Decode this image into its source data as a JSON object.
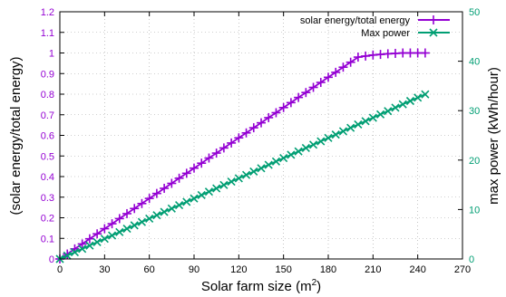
{
  "chart_data": {
    "type": "line",
    "xlabel": "Solar farm size (m",
    "xlabel_sup": "2",
    "xlabel_end": ")",
    "ylabel_left": "(solar energy/total energy)",
    "ylabel_right": "max power (kWh/hour)",
    "xlim": [
      0,
      270
    ],
    "ylim_left": [
      0,
      1.2
    ],
    "ylim_right": [
      0,
      50
    ],
    "x_ticks": [
      "0",
      "30",
      "60",
      "90",
      "120",
      "150",
      "180",
      "210",
      "240",
      "270"
    ],
    "y_left_ticks": [
      "0",
      "0.1",
      "0.2",
      "0.3",
      "0.4",
      "0.5",
      "0.6",
      "0.7",
      "0.8",
      "0.9",
      "1",
      "1.1",
      "1.2"
    ],
    "y_right_ticks": [
      "0",
      "10",
      "20",
      "30",
      "40",
      "50"
    ],
    "grid": true,
    "legend_position": "top-right",
    "colors": {
      "left_axis": "#9400d3",
      "right_axis": "#009e73"
    },
    "series": [
      {
        "name": "solar energy/total energy",
        "axis": "left",
        "marker": "plus",
        "color": "#9400d3",
        "x": [
          0,
          5,
          10,
          15,
          20,
          25,
          30,
          35,
          40,
          45,
          50,
          55,
          60,
          65,
          70,
          75,
          80,
          85,
          90,
          95,
          100,
          105,
          110,
          115,
          120,
          125,
          130,
          135,
          140,
          145,
          150,
          155,
          160,
          165,
          170,
          175,
          180,
          185,
          190,
          195,
          200,
          205,
          210,
          215,
          220,
          225,
          230,
          235,
          240,
          245
        ],
        "y": [
          0,
          0.024,
          0.049,
          0.073,
          0.098,
          0.122,
          0.147,
          0.171,
          0.196,
          0.22,
          0.245,
          0.269,
          0.294,
          0.318,
          0.343,
          0.367,
          0.392,
          0.416,
          0.441,
          0.465,
          0.49,
          0.514,
          0.539,
          0.563,
          0.588,
          0.612,
          0.637,
          0.661,
          0.686,
          0.71,
          0.735,
          0.759,
          0.784,
          0.808,
          0.833,
          0.857,
          0.882,
          0.906,
          0.931,
          0.955,
          0.98,
          0.985,
          0.99,
          0.993,
          0.996,
          0.998,
          1.0,
          1.0,
          1.0,
          1.0
        ]
      },
      {
        "name": "Max power",
        "axis": "right",
        "marker": "cross",
        "color": "#009e73",
        "x": [
          0,
          5,
          10,
          15,
          20,
          25,
          30,
          35,
          40,
          45,
          50,
          55,
          60,
          65,
          70,
          75,
          80,
          85,
          90,
          95,
          100,
          105,
          110,
          115,
          120,
          125,
          130,
          135,
          140,
          145,
          150,
          155,
          160,
          165,
          170,
          175,
          180,
          185,
          190,
          195,
          200,
          205,
          210,
          215,
          220,
          225,
          230,
          235,
          240,
          245
        ],
        "y": [
          0,
          0.68,
          1.36,
          2.04,
          2.72,
          3.4,
          4.08,
          4.76,
          5.44,
          6.12,
          6.8,
          7.48,
          8.16,
          8.84,
          9.52,
          10.2,
          10.88,
          11.56,
          12.24,
          12.92,
          13.6,
          14.28,
          14.96,
          15.64,
          16.32,
          17.0,
          17.68,
          18.36,
          19.04,
          19.72,
          20.4,
          21.08,
          21.76,
          22.44,
          23.12,
          23.8,
          24.48,
          25.16,
          25.84,
          26.52,
          27.2,
          27.88,
          28.56,
          29.24,
          29.92,
          30.6,
          31.28,
          31.96,
          32.64,
          33.3
        ]
      }
    ]
  }
}
